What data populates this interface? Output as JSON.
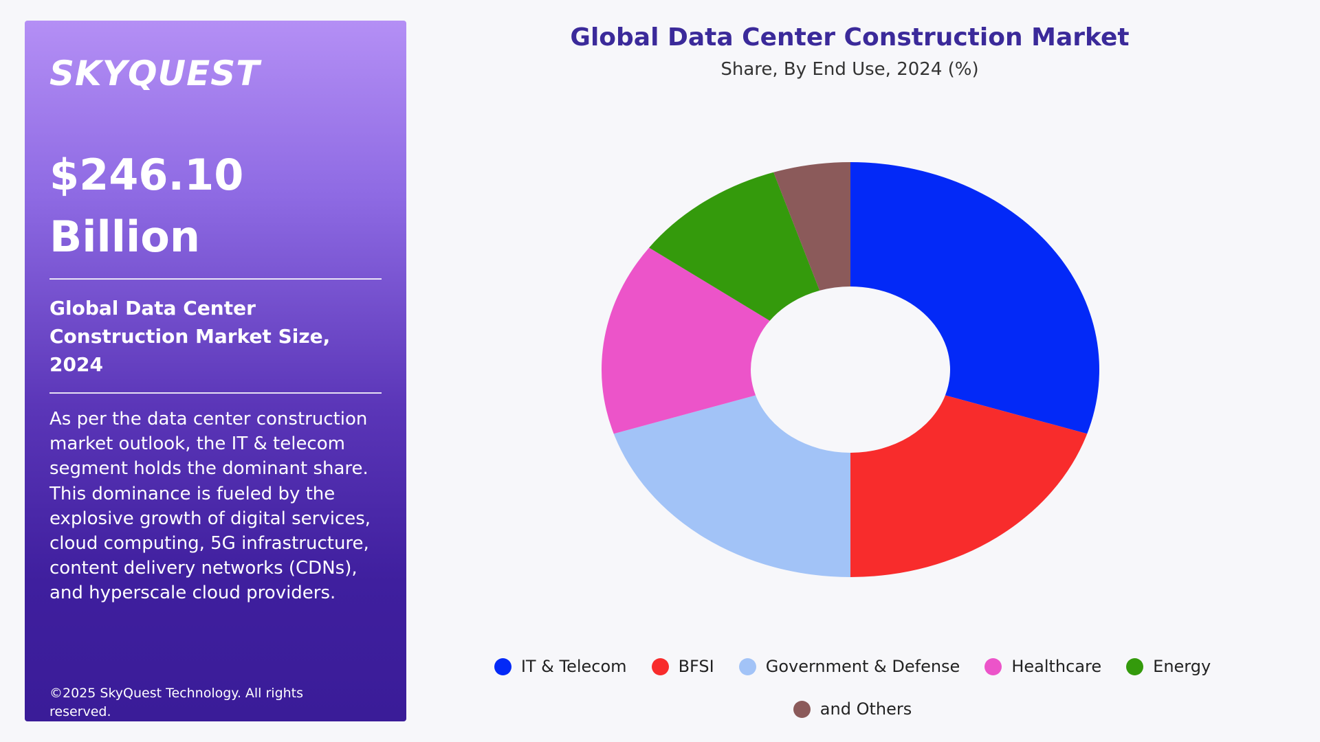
{
  "brand": {
    "logo_text": "SKYQUEST"
  },
  "panel": {
    "metric_line1": "$246.10",
    "metric_line2": "Billion",
    "size_title": "Global Data Center Construction Market Size, 2024",
    "description": "As per the data center construction market outlook, the IT & telecom segment holds the dominant share. This dominance is fueled by the explosive growth of digital services, cloud computing, 5G infrastructure, content delivery networks (CDNs), and hyperscale cloud providers.",
    "copyright": "©2025 SkyQuest Technology. All rights reserved."
  },
  "chart_data": {
    "type": "pie",
    "variant": "donut",
    "title": "Global Data Center Construction Market",
    "subtitle": "Share, By End Use, 2024 (%)",
    "legend_position": "bottom",
    "categories": [
      "IT & Telecom",
      "BFSI",
      "Government & Defense",
      "Healthcare",
      "Energy",
      "and Others"
    ],
    "values": [
      30,
      20,
      20,
      15,
      10,
      5
    ],
    "colors": [
      "#0329f7",
      "#f82c2c",
      "#a2c3f7",
      "#ec54c9",
      "#349a0c",
      "#8b5a5a"
    ]
  }
}
